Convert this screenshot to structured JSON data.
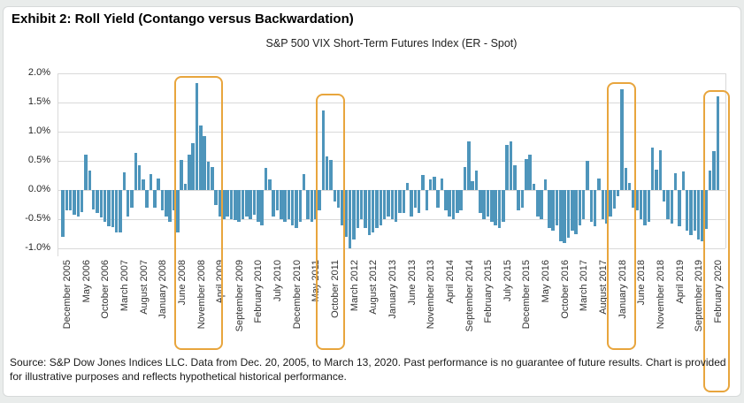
{
  "exhibit_title": "Exhibit 2: Roll Yield (Contango versus Backwardation)",
  "source_note": "Source: S&P Dow Jones Indices LLC. Data from Dec. 20, 2005, to March 13, 2020. Past performance is no guarantee of future results. Chart is provided for illustrative purposes and reflects hypothetical historical performance.",
  "chart_data": {
    "type": "bar",
    "title": "S&P 500 VIX Short-Term Futures Index (ER - Spot)",
    "unit": "percent",
    "ylim": [
      -1.0,
      2.0
    ],
    "grid": true,
    "bar_color": "#4E95BB",
    "highlight_color": "#E8A53D",
    "y_ticks": [
      {
        "value": 2.0,
        "label": "2.0%"
      },
      {
        "value": 1.5,
        "label": "1.5%"
      },
      {
        "value": 1.0,
        "label": "1.0%"
      },
      {
        "value": 0.5,
        "label": "0.5%"
      },
      {
        "value": 0.0,
        "label": "0.0%"
      },
      {
        "value": -0.5,
        "label": "-0.5%"
      },
      {
        "value": -1.0,
        "label": "-1.0%"
      }
    ],
    "x_tick_every": 5,
    "x_tick_labels": [
      "December 2005",
      "May 2006",
      "October 2006",
      "March 2007",
      "August 2007",
      "January 2008",
      "June 2008",
      "November 2008",
      "April 2009",
      "September 2009",
      "February 2010",
      "July 2010",
      "December 2010",
      "May 2011",
      "October 2011",
      "March 2012",
      "August 2012",
      "January 2013",
      "June 2013",
      "November 2013",
      "April 2014",
      "September 2014",
      "February 2015",
      "July 2015",
      "December 2015",
      "May 2016",
      "October 2016",
      "March 2017",
      "August 2017",
      "January 2018",
      "June 2018",
      "November 2018",
      "April 2019",
      "September 2019",
      "February 2020"
    ],
    "start_month": "2005-12",
    "end_month": "2020-03",
    "x": [
      "2005-12",
      "2006-01",
      "2006-02",
      "2006-03",
      "2006-04",
      "2006-05",
      "2006-06",
      "2006-07",
      "2006-08",
      "2006-09",
      "2006-10",
      "2006-11",
      "2006-12",
      "2007-01",
      "2007-02",
      "2007-03",
      "2007-04",
      "2007-05",
      "2007-06",
      "2007-07",
      "2007-08",
      "2007-09",
      "2007-10",
      "2007-11",
      "2007-12",
      "2008-01",
      "2008-02",
      "2008-03",
      "2008-04",
      "2008-05",
      "2008-06",
      "2008-07",
      "2008-08",
      "2008-09",
      "2008-10",
      "2008-11",
      "2008-12",
      "2009-01",
      "2009-02",
      "2009-03",
      "2009-04",
      "2009-05",
      "2009-06",
      "2009-07",
      "2009-08",
      "2009-09",
      "2009-10",
      "2009-11",
      "2009-12",
      "2010-01",
      "2010-02",
      "2010-03",
      "2010-04",
      "2010-05",
      "2010-06",
      "2010-07",
      "2010-08",
      "2010-09",
      "2010-10",
      "2010-11",
      "2010-12",
      "2011-01",
      "2011-02",
      "2011-03",
      "2011-04",
      "2011-05",
      "2011-06",
      "2011-07",
      "2011-08",
      "2011-09",
      "2011-10",
      "2011-11",
      "2011-12",
      "2012-01",
      "2012-02",
      "2012-03",
      "2012-04",
      "2012-05",
      "2012-06",
      "2012-07",
      "2012-08",
      "2012-09",
      "2012-10",
      "2012-11",
      "2012-12",
      "2013-01",
      "2013-02",
      "2013-03",
      "2013-04",
      "2013-05",
      "2013-06",
      "2013-07",
      "2013-08",
      "2013-09",
      "2013-10",
      "2013-11",
      "2013-12",
      "2014-01",
      "2014-02",
      "2014-03",
      "2014-04",
      "2014-05",
      "2014-06",
      "2014-07",
      "2014-08",
      "2014-09",
      "2014-10",
      "2014-11",
      "2014-12",
      "2015-01",
      "2015-02",
      "2015-03",
      "2015-04",
      "2015-05",
      "2015-06",
      "2015-07",
      "2015-08",
      "2015-09",
      "2015-10",
      "2015-11",
      "2015-12",
      "2016-01",
      "2016-02",
      "2016-03",
      "2016-04",
      "2016-05",
      "2016-06",
      "2016-07",
      "2016-08",
      "2016-09",
      "2016-10",
      "2016-11",
      "2016-12",
      "2017-01",
      "2017-02",
      "2017-03",
      "2017-04",
      "2017-05",
      "2017-06",
      "2017-07",
      "2017-08",
      "2017-09",
      "2017-10",
      "2017-11",
      "2017-12",
      "2018-01",
      "2018-02",
      "2018-03",
      "2018-04",
      "2018-05",
      "2018-06",
      "2018-07",
      "2018-08",
      "2018-09",
      "2018-10",
      "2018-11",
      "2018-12",
      "2019-01",
      "2019-02",
      "2019-03",
      "2019-04",
      "2019-05",
      "2019-06",
      "2019-07",
      "2019-08",
      "2019-09",
      "2019-10",
      "2019-11",
      "2019-12",
      "2020-01",
      "2020-02",
      "2020-03"
    ],
    "values": [
      -0.8,
      -0.35,
      -0.35,
      -0.42,
      -0.45,
      -0.38,
      0.6,
      0.33,
      -0.33,
      -0.4,
      -0.47,
      -0.55,
      -0.62,
      -0.63,
      -0.72,
      -0.73,
      0.3,
      -0.45,
      -0.3,
      0.64,
      0.43,
      0.18,
      -0.3,
      0.28,
      -0.3,
      0.2,
      -0.35,
      -0.45,
      -0.55,
      -0.35,
      -0.73,
      0.51,
      0.1,
      0.61,
      0.81,
      1.84,
      1.11,
      0.93,
      0.48,
      0.4,
      -0.25,
      -0.45,
      -0.5,
      -0.45,
      -0.5,
      -0.52,
      -0.55,
      -0.5,
      -0.45,
      -0.5,
      -0.42,
      -0.55,
      -0.6,
      0.38,
      0.18,
      -0.45,
      -0.35,
      -0.5,
      -0.55,
      -0.5,
      -0.6,
      -0.65,
      -0.55,
      0.28,
      -0.5,
      -0.55,
      -0.5,
      -0.35,
      1.37,
      0.58,
      0.52,
      -0.2,
      -0.3,
      -0.6,
      -0.8,
      -1.0,
      -0.85,
      -0.65,
      -0.5,
      -0.65,
      -0.78,
      -0.72,
      -0.65,
      -0.6,
      -0.5,
      -0.45,
      -0.5,
      -0.55,
      -0.4,
      -0.4,
      0.12,
      -0.45,
      -0.3,
      -0.4,
      0.26,
      -0.35,
      0.18,
      0.22,
      -0.3,
      0.2,
      -0.35,
      -0.45,
      -0.5,
      -0.4,
      -0.35,
      0.4,
      0.84,
      0.15,
      0.33,
      -0.4,
      -0.5,
      -0.45,
      -0.55,
      -0.6,
      -0.65,
      -0.55,
      0.78,
      0.83,
      0.43,
      -0.35,
      -0.3,
      0.53,
      0.6,
      0.1,
      -0.45,
      -0.5,
      0.18,
      -0.65,
      -0.7,
      -0.6,
      -0.88,
      -0.91,
      -0.82,
      -0.7,
      -0.75,
      -0.6,
      -0.5,
      0.5,
      -0.55,
      -0.62,
      0.2,
      -0.5,
      -0.58,
      -0.45,
      -0.32,
      -0.1,
      1.73,
      0.38,
      0.12,
      -0.3,
      -0.35,
      -0.5,
      -0.6,
      -0.55,
      0.72,
      0.35,
      0.68,
      -0.2,
      -0.5,
      -0.58,
      0.29,
      -0.62,
      0.32,
      -0.7,
      -0.78,
      -0.7,
      -0.85,
      -0.88,
      -0.66,
      0.33,
      0.67,
      1.61
    ],
    "highlights": [
      {
        "start_index": 30,
        "end_index": 40,
        "start_month": "2008-06",
        "end_month": "2009-04"
      },
      {
        "start_index": 67,
        "end_index": 72,
        "start_month": "2011-07",
        "end_month": "2011-12"
      },
      {
        "start_index": 143,
        "end_index": 148,
        "start_month": "2017-11",
        "end_month": "2018-04"
      },
      {
        "start_index": 168,
        "end_index": 171,
        "start_month": "2019-12",
        "end_month": "2020-03"
      }
    ]
  }
}
